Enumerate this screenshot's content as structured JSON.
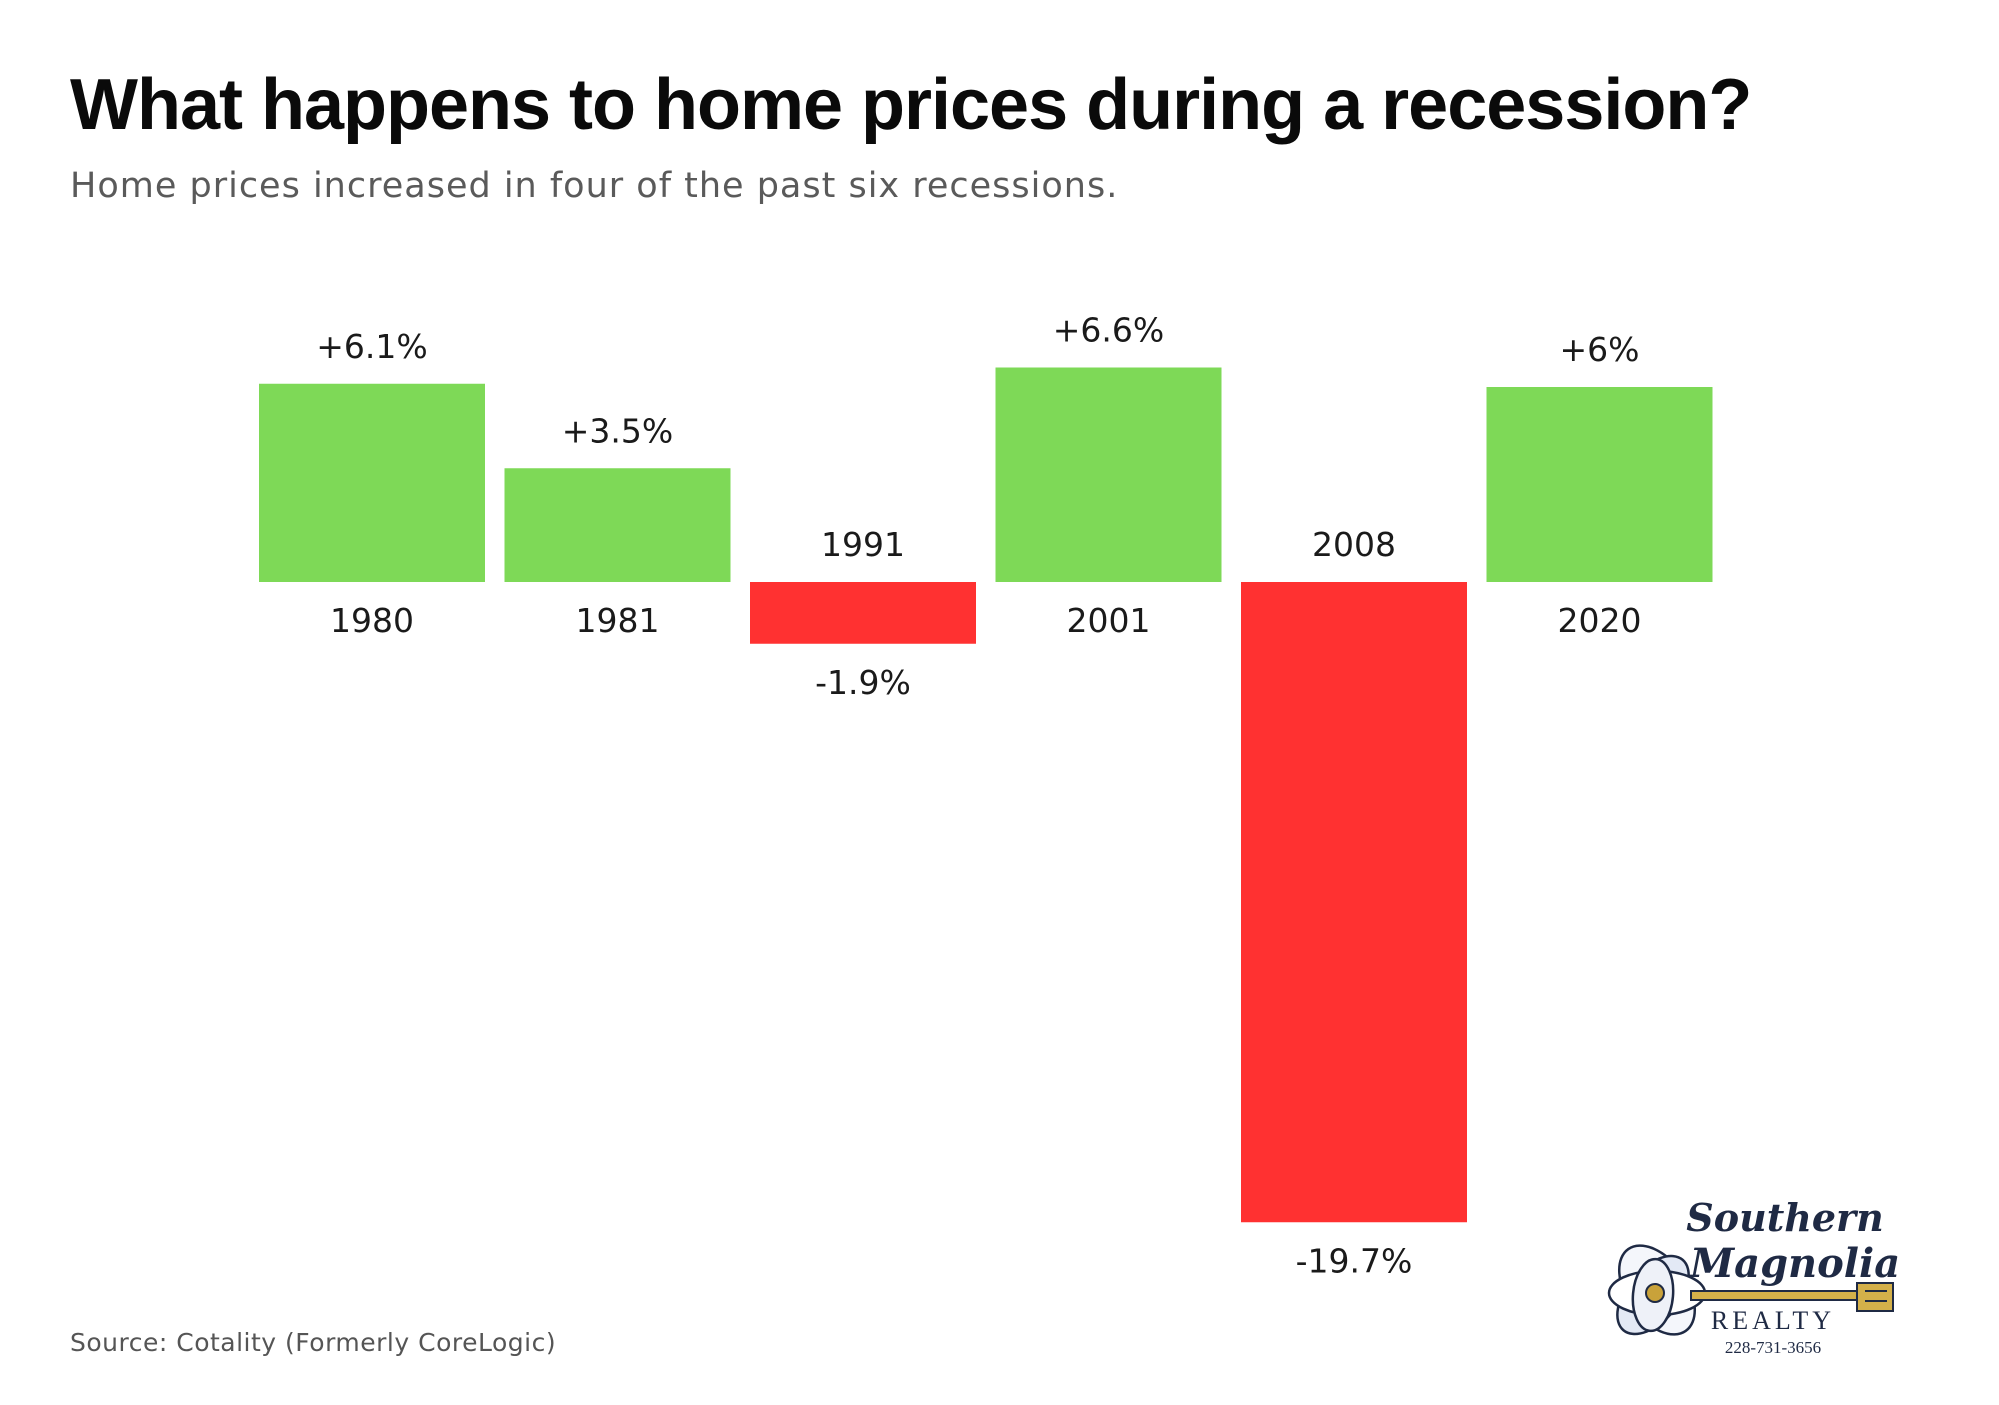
{
  "title": "What happens to home prices during a recession?",
  "subtitle": "Home prices increased in four of the past six recessions.",
  "source": "Source: Cotality (Formerly CoreLogic)",
  "logo": {
    "line1": "Southern",
    "line2": "Magnolia",
    "line3": "REALTY",
    "phone": "228-731-3656"
  },
  "colors": {
    "positive": "#7ed957",
    "negative": "#ff3131",
    "text": "#1a1a1a"
  },
  "chart_data": {
    "type": "bar",
    "title": "What happens to home prices during a recession?",
    "subtitle": "Home prices increased in four of the past six recessions.",
    "categories": [
      "1980",
      "1981",
      "1991",
      "2001",
      "2008",
      "2020"
    ],
    "values": [
      6.1,
      3.5,
      -1.9,
      6.6,
      -19.7,
      6.0
    ],
    "data_labels": [
      "+6.1%",
      "+3.5%",
      "-1.9%",
      "+6.6%",
      "-19.7%",
      "+6%"
    ],
    "xlabel": "",
    "ylabel": "",
    "ylim": [
      -19.7,
      6.6
    ],
    "grid": false,
    "legend": "none"
  }
}
